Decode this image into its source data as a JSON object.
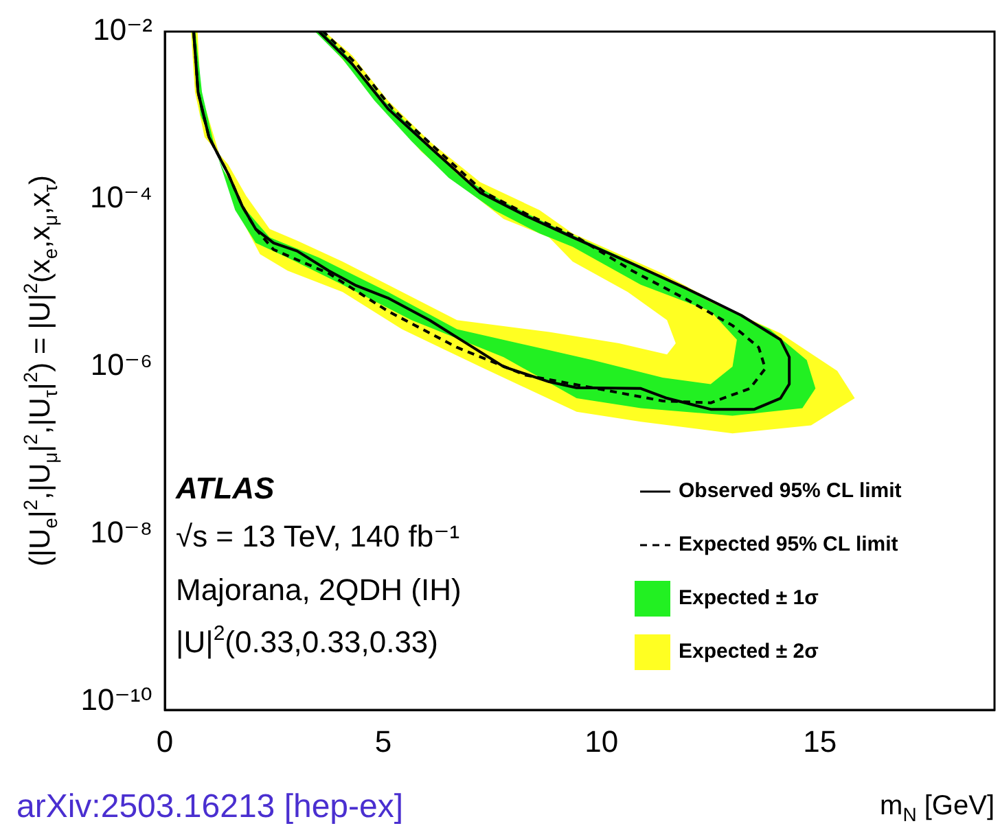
{
  "chart_data": {
    "type": "line",
    "xlabel": "m$_{N}$ [GeV]",
    "ylabel": "(|U$_{e}$|$^{2}$,|U$_{μ}$|$^{2}$,|U$_{τ}$|$^{2}$) = |U|$^{2}$(x$_{e}$,x$_{μ}$,x$_{τ}$)",
    "annotations": [
      "ATLAS",
      "√s = 13 TeV, 140 fb⁻¹",
      "Majorana, 2QDH (IH)",
      "|U|$^{2}$(0.33,0.33,0.33)",
      "arXiv:2503.16213 [hep-ex]"
    ],
    "log": "y",
    "grid": false,
    "legend": "bottom right",
    "marker": "none",
    "xlim": [
      0,
      19
    ],
    "xticks": [
      0,
      5,
      10,
      15
    ],
    "ylim": [
      8e-11,
      0.01
    ],
    "yticks": [
      {
        "value": 1e-10,
        "label": "10⁻¹⁰"
      },
      {
        "value": 1e-08,
        "label": "10⁻⁸"
      },
      {
        "value": 1e-06,
        "label": "10⁻⁶"
      },
      {
        "value": 0.0001,
        "label": "10⁻⁴"
      },
      {
        "value": 0.01,
        "label": "10⁻²"
      }
    ],
    "series": [
      {
        "name": "Observed 95% CL limit",
        "type": "line",
        "line_style": "solid",
        "color": "#000000",
        "x": [
          0.66,
          0.76,
          1.01,
          1.45,
          1.77,
          2.08,
          2.49,
          3.03,
          3.75,
          4.38,
          5.11,
          6.06,
          6.91,
          7.76,
          8.8,
          9.43,
          10.9,
          11.5,
          12.5,
          13.5,
          14.1,
          14.3,
          14.3,
          14.1,
          13.2,
          11.96,
          10.7,
          9.34,
          8.27,
          7.22,
          6.18,
          5.11,
          4.29,
          3.53
        ],
        "values": [
          0.01,
          0.0019,
          0.00055,
          0.0002,
          8.3e-05,
          4.4e-05,
          3e-05,
          2.4e-05,
          1.4e-05,
          9.3e-06,
          6.6e-06,
          3.6e-06,
          1.9e-06,
          1e-06,
          6.6e-07,
          5.6e-07,
          5.5e-07,
          4.2e-07,
          3.1e-07,
          3.1e-07,
          4.2e-07,
          6.2e-07,
          1.3e-06,
          2.1e-06,
          4.1e-06,
          8.5e-06,
          1.7e-05,
          3.5e-05,
          6.3e-05,
          0.00012,
          0.00037,
          0.0012,
          0.0041,
          0.01
        ]
      },
      {
        "name": "Expected 95% CL limit",
        "type": "line",
        "line_style": "dashed",
        "color": "#000000",
        "x": [
          0.66,
          0.76,
          1.01,
          1.45,
          1.77,
          2.08,
          2.49,
          3.75,
          5.11,
          6.69,
          8.27,
          9.8,
          11.4,
          12.5,
          13.4,
          13.75,
          13.6,
          13.0,
          11.96,
          10.7,
          9.44,
          8.37,
          7.32,
          6.28,
          5.21,
          4.39,
          3.63
        ],
        "values": [
          0.01,
          0.0019,
          0.00055,
          0.0002,
          8.3e-05,
          4.4e-05,
          2.5e-05,
          1.3e-05,
          4.6e-06,
          1.7e-06,
          7.9e-07,
          5.6e-07,
          3.9e-07,
          3.7e-07,
          5.5e-07,
          9.5e-07,
          1.7e-06,
          3.1e-06,
          6.3e-06,
          1.4e-05,
          3.5e-05,
          6.3e-05,
          0.00012,
          0.00037,
          0.0012,
          0.0041,
          0.01
        ]
      },
      {
        "name": "Expected ± 1σ",
        "type": "area",
        "color": "#22f022",
        "x": [
          0.7,
          0.85,
          1.14,
          1.61,
          2.08,
          2.81,
          4.07,
          5.65,
          7.76,
          9.43,
          10.9,
          13.0,
          14.6,
          14.9,
          14.7,
          13.85,
          12.5,
          10.9,
          8.8,
          7.76,
          6.69,
          5.87,
          5.02,
          4.16,
          3.6,
          3.44,
          4.07,
          4.8,
          5.65,
          6.5,
          7.54,
          8.58,
          9.34,
          10.9,
          12.5,
          13.1,
          13.0,
          12.5,
          11.4,
          9.8,
          6.69,
          5.11,
          3.53,
          2.4,
          1.86,
          1.33,
          0.82,
          0.62
        ],
        "values": [
          0.01,
          0.0019,
          0.00042,
          7.4e-05,
          3e-05,
          2e-05,
          9.5e-06,
          3.6e-06,
          1.3e-06,
          4.2e-07,
          3.2e-07,
          2.6e-07,
          3.2e-07,
          5.5e-07,
          1.2e-06,
          2.8e-06,
          5.9e-06,
          1.6e-05,
          5e-05,
          9.3e-05,
          0.0002,
          0.00055,
          0.0015,
          0.0052,
          0.01,
          0.01,
          0.0047,
          0.0015,
          0.00049,
          0.00018,
          7.4e-05,
          3.9e-05,
          2.7e-05,
          9.5e-06,
          4.6e-06,
          2.1e-06,
          1e-06,
          6.2e-07,
          7.4e-07,
          1.2e-06,
          2.8e-06,
          7.8e-06,
          2e-05,
          3.5e-05,
          7.4e-05,
          0.00023,
          0.001,
          0.01
        ]
      },
      {
        "name": "Expected ± 2σ",
        "type": "area",
        "color": "#ffff22",
        "x": [
          0.75,
          0.82,
          1.23,
          1.77,
          2.18,
          2.81,
          4.07,
          5.43,
          7.22,
          9.43,
          10.9,
          13.0,
          14.8,
          15.8,
          15.4,
          14.1,
          13.0,
          11.4,
          9.34,
          8.58,
          7.22,
          6.06,
          5.11,
          4.29,
          3.66,
          3.5,
          4.16,
          5.02,
          5.87,
          6.69,
          7.76,
          8.8,
          9.34,
          10.6,
          11.5,
          11.7,
          11.5,
          10.4,
          8.8,
          6.69,
          5.11,
          4.07,
          3.03,
          2.4,
          1.86,
          1.45,
          0.91,
          0.69,
          0.6
        ],
        "values": [
          0.01,
          0.0019,
          0.00037,
          5.6e-05,
          2.2e-05,
          1.4e-05,
          7.8e-06,
          2.8e-06,
          1e-06,
          2.9e-07,
          2.2e-07,
          1.6e-07,
          2e-07,
          4.2e-07,
          8.9e-07,
          2.5e-06,
          4.6e-06,
          1.3e-05,
          3.9e-05,
          7.4e-05,
          0.00016,
          0.00049,
          0.0015,
          0.0052,
          0.01,
          0.01,
          0.0041,
          0.0012,
          0.00037,
          0.00016,
          5.8e-05,
          3.5e-05,
          1.8e-05,
          7.8e-06,
          3.6e-06,
          1.9e-06,
          1.4e-06,
          1.9e-06,
          2.6e-06,
          3.6e-06,
          9.5e-06,
          1.8e-05,
          3.2e-05,
          4.4e-05,
          0.00011,
          0.00026,
          0.00055,
          0.0019,
          0.01
        ]
      }
    ]
  }
}
